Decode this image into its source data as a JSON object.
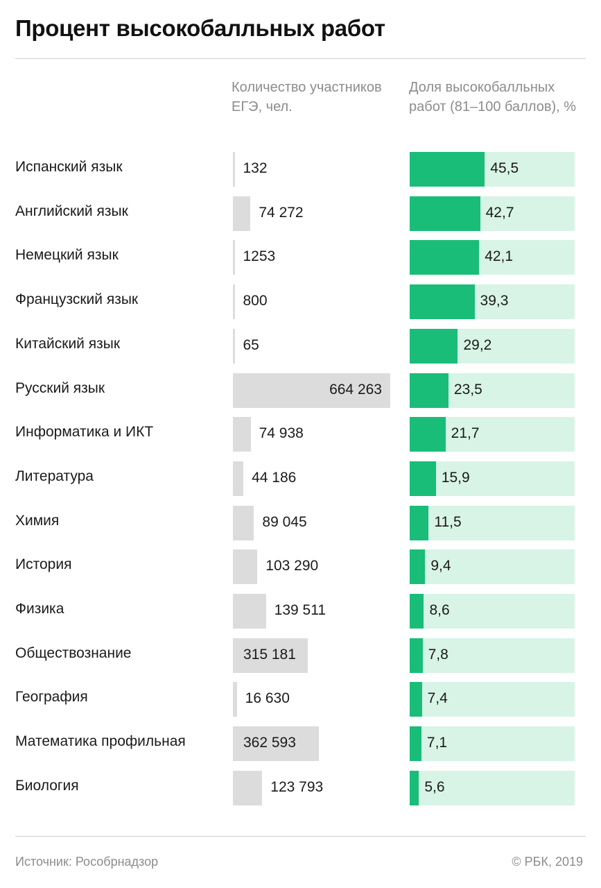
{
  "chart_data": {
    "type": "bar",
    "title": "Процент высокобалльных работ",
    "columns": {
      "count_header": "Количество участников ЕГЭ, чел.",
      "share_header": "Доля высокобалльных работ (81–100 баллов), %"
    },
    "categories": [
      "Испанский язык",
      "Английский язык",
      "Немецкий язык",
      "Французский язык",
      "Китайский язык",
      "Русский язык",
      "Информатика и ИКТ",
      "Литература",
      "Химия",
      "История",
      "Физика",
      "Обществознание",
      "География",
      "Математика профильная",
      "Биология"
    ],
    "series": [
      {
        "name": "Количество участников ЕГЭ, чел.",
        "values": [
          132,
          74272,
          1253,
          800,
          65,
          664263,
          74938,
          44186,
          89045,
          103290,
          139511,
          315181,
          16630,
          362593,
          123793
        ],
        "labels": [
          "132",
          "74 272",
          "1253",
          "800",
          "65",
          "664 263",
          "74 938",
          "44 186",
          "89 045",
          "103 290",
          "139 511",
          "315 181",
          "16 630",
          "362 593",
          "123 793"
        ]
      },
      {
        "name": "Доля высокобалльных работ (81–100 баллов), %",
        "values": [
          45.5,
          42.7,
          42.1,
          39.3,
          29.2,
          23.5,
          21.7,
          15.9,
          11.5,
          9.4,
          8.6,
          7.8,
          7.4,
          7.1,
          5.6
        ],
        "labels": [
          "45,5",
          "42,7",
          "42,1",
          "39,3",
          "29,2",
          "23,5",
          "21,7",
          "15,9",
          "11,5",
          "9,4",
          "8,6",
          "7,8",
          "7,4",
          "7,1",
          "5,6"
        ]
      }
    ],
    "xlim_count": [
      0,
      664263
    ],
    "xlim_share": [
      0,
      100
    ]
  },
  "colors": {
    "count_bar": "#dcdcdc",
    "share_bar": "#19bd78",
    "share_track": "#d7f4e6"
  },
  "footer": {
    "source": "Источник: Рособрнадзор",
    "copyright": "© РБК, 2019"
  }
}
